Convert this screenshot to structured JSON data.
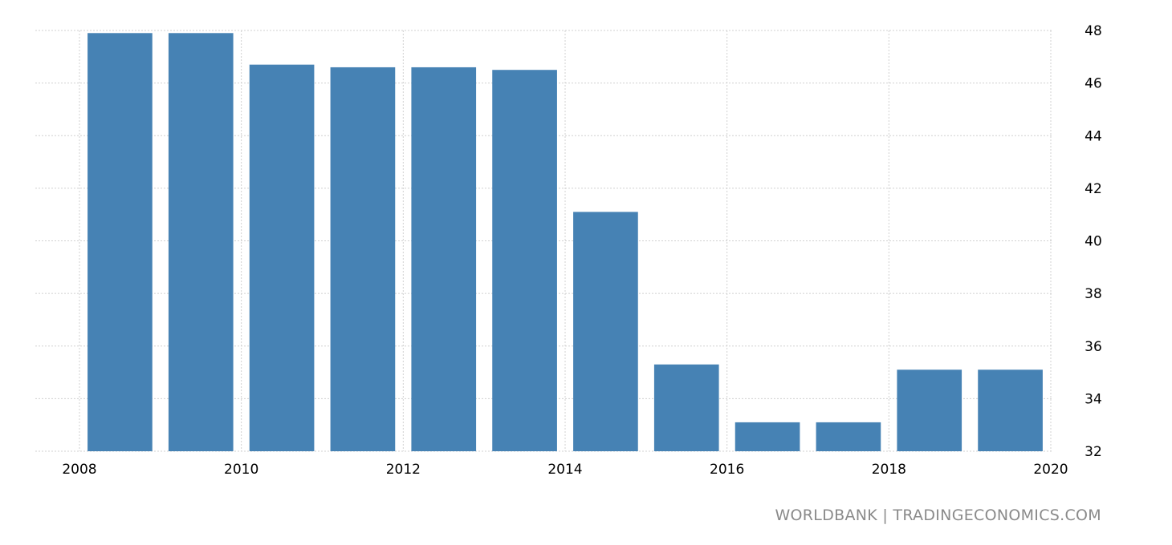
{
  "chart_data": {
    "type": "bar",
    "title": "",
    "xlabel": "",
    "ylabel": "",
    "categories": [
      "2008",
      "2009",
      "2010",
      "2011",
      "2012",
      "2013",
      "2014",
      "2015",
      "2016",
      "2017",
      "2018",
      "2019"
    ],
    "values": [
      47.9,
      47.9,
      46.7,
      46.6,
      46.6,
      46.5,
      41.1,
      35.3,
      33.1,
      33.1,
      35.1,
      35.1
    ],
    "ylim": [
      32,
      48
    ],
    "yticks": [
      "32",
      "34",
      "36",
      "38",
      "40",
      "42",
      "44",
      "46",
      "48"
    ],
    "xlim": [
      2008,
      2020
    ],
    "xticks": [
      "2008",
      "2010",
      "2012",
      "2014",
      "2016",
      "2018",
      "2020"
    ],
    "y_axis_position": "right",
    "grid": true,
    "bar_color": "#4682b4"
  },
  "source_text": "WORLDBANK | TRADINGECONOMICS.COM"
}
